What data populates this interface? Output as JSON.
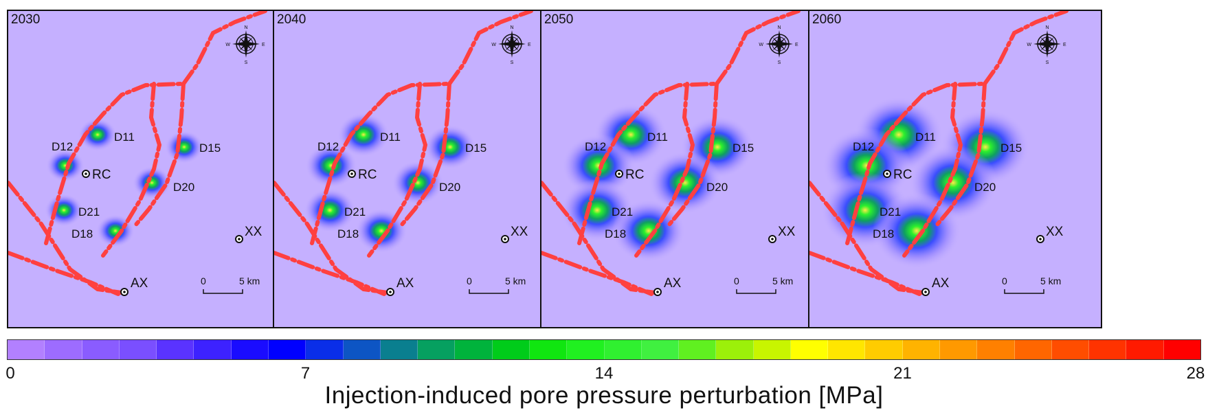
{
  "panels": [
    {
      "year": "2030",
      "scale": 1.0
    },
    {
      "year": "2040",
      "scale": 1.35
    },
    {
      "year": "2050",
      "scale": 1.9
    },
    {
      "year": "2060",
      "scale": 2.3
    }
  ],
  "wells": [
    "D11",
    "D12",
    "D15",
    "D20",
    "D21",
    "D18"
  ],
  "stations": [
    "RC",
    "XX",
    "AX"
  ],
  "compass": {
    "n": "N",
    "s": "S",
    "e": "E",
    "w": "W"
  },
  "scalebar": {
    "start": "0",
    "end": "5 km"
  },
  "colorbar": {
    "ticks": [
      "0",
      "7",
      "14",
      "21",
      "28"
    ],
    "min": 0,
    "max": 28,
    "label": "Injection-induced pore pressure perturbation [MPa]",
    "colors": [
      "#b280ff",
      "#9d6cff",
      "#8a5cff",
      "#7a4fff",
      "#5a33ff",
      "#3d22ff",
      "#1a0cff",
      "#0000ff",
      "#0a2ee8",
      "#0d55c4",
      "#0a7f8f",
      "#06a060",
      "#00b33c",
      "#00cc1a",
      "#10e610",
      "#20f020",
      "#30f030",
      "#40f040",
      "#60f020",
      "#9cf00a",
      "#c8f500",
      "#ffff00",
      "#ffe600",
      "#ffcc00",
      "#ffb300",
      "#ff9900",
      "#ff8000",
      "#ff6600",
      "#ff4d00",
      "#ff3300",
      "#ff1a00",
      "#ff0000"
    ]
  }
}
